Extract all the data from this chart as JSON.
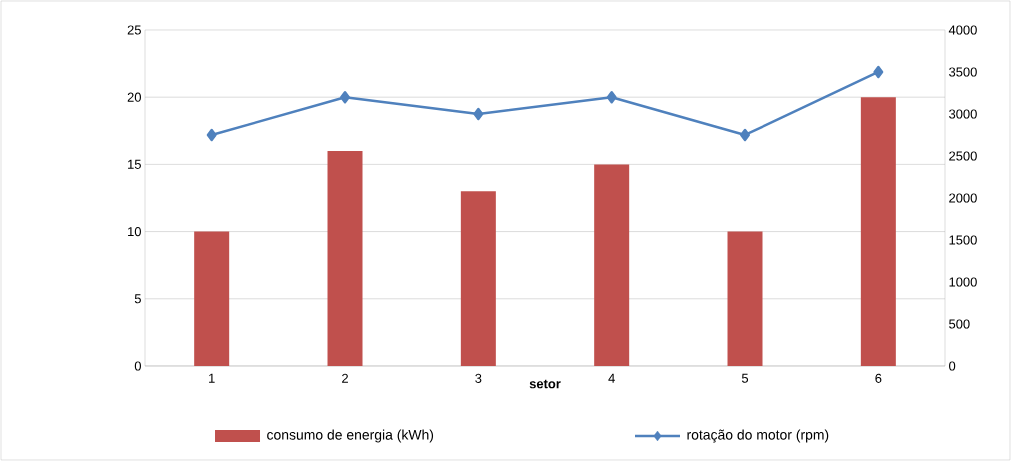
{
  "chart_data": {
    "type": "bar",
    "xlabel": "setor",
    "categories": [
      "1",
      "2",
      "3",
      "4",
      "5",
      "6"
    ],
    "series": [
      {
        "name": "consumo de energia (kWh)",
        "color": "#c0504d",
        "values": [
          10,
          16,
          13,
          15,
          10,
          20
        ]
      },
      {
        "name": "rotação do motor (rpm)",
        "type": "line",
        "axis": "y2",
        "color": "#4f81bd",
        "marker": "diamond",
        "values": [
          2750,
          3200,
          3000,
          3200,
          2750,
          3500
        ]
      }
    ],
    "ylim": [
      0,
      25
    ],
    "yticks": [
      0,
      5,
      10,
      15,
      20,
      25
    ],
    "y2lim": [
      0,
      4000
    ],
    "y2ticks": [
      0,
      500,
      1000,
      1500,
      2000,
      2500,
      3000,
      3500,
      4000
    ],
    "grid": "y",
    "legend": "bottom"
  }
}
